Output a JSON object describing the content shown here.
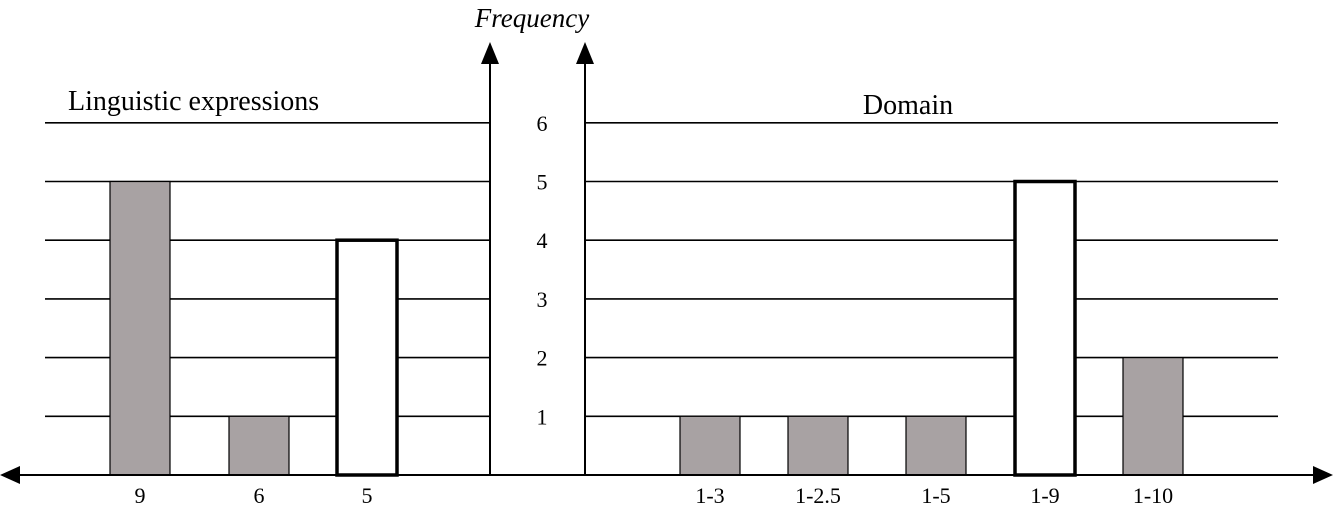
{
  "y_axis_title": "Frequency",
  "chart_data": [
    {
      "type": "bar",
      "title": "Linguistic expressions",
      "categories": [
        "9",
        "6",
        "5"
      ],
      "values": [
        5,
        1,
        4
      ],
      "highlighted": [
        false,
        false,
        true
      ],
      "ylim": [
        0,
        6
      ],
      "yticks": [
        "1",
        "2",
        "3",
        "4",
        "5",
        "6"
      ],
      "grid": true
    },
    {
      "type": "bar",
      "title": "Domain",
      "categories": [
        "1-3",
        "1-2.5",
        "1-5",
        "1-9",
        "1-10"
      ],
      "values": [
        1,
        1,
        1,
        5,
        2
      ],
      "highlighted": [
        false,
        false,
        false,
        true,
        false
      ],
      "ylim": [
        0,
        6
      ],
      "yticks": [
        "1",
        "2",
        "3",
        "4",
        "5",
        "6"
      ],
      "grid": true
    }
  ],
  "colors": {
    "bar_fill": "#a8a2a3",
    "highlight_fill": "#ffffff",
    "line": "#000000"
  }
}
